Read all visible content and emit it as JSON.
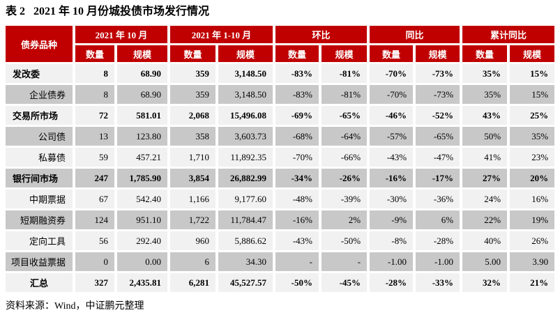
{
  "title": "表 2   2021 年 10 月份城投债市场发行情况",
  "source_note": "资料来源：Wind，中证鹏元整理",
  "colors": {
    "header_red": "#C00000",
    "row_light": "#F1F1F1",
    "row_dark": "#C8C8C8",
    "header_text": "#FFFFFF"
  },
  "table": {
    "corner_header": "债券品种",
    "group_headers": [
      "2021 年 10 月",
      "2021 年 1-10 月",
      "环比",
      "同比",
      "累计同比"
    ],
    "sub_headers": [
      "数量",
      "规模",
      "数量",
      "规模",
      "数量",
      "规模",
      "数量",
      "规模",
      "数量",
      "规模"
    ],
    "rows": [
      {
        "label": "发改委",
        "style": "parent",
        "values": [
          "8",
          "68.90",
          "359",
          "3,148.50",
          "-83%",
          "-81%",
          "-70%",
          "-73%",
          "35%",
          "15%"
        ]
      },
      {
        "label": "企业债券",
        "style": "child",
        "values": [
          "8",
          "68.90",
          "359",
          "3,148.50",
          "-83%",
          "-81%",
          "-70%",
          "-73%",
          "35%",
          "15%"
        ]
      },
      {
        "label": "交易所市场",
        "style": "parent",
        "values": [
          "72",
          "581.01",
          "2,068",
          "15,496.08",
          "-69%",
          "-65%",
          "-46%",
          "-52%",
          "43%",
          "25%"
        ]
      },
      {
        "label": "公司债",
        "style": "child",
        "values": [
          "13",
          "123.80",
          "358",
          "3,603.73",
          "-68%",
          "-64%",
          "-57%",
          "-65%",
          "50%",
          "35%"
        ]
      },
      {
        "label": "私募债",
        "style": "child",
        "values": [
          "59",
          "457.21",
          "1,710",
          "11,892.35",
          "-70%",
          "-66%",
          "-43%",
          "-47%",
          "41%",
          "23%"
        ]
      },
      {
        "label": "银行间市场",
        "style": "parent",
        "values": [
          "247",
          "1,785.90",
          "3,854",
          "26,882.99",
          "-34%",
          "-26%",
          "-16%",
          "-17%",
          "27%",
          "20%"
        ]
      },
      {
        "label": "中期票据",
        "style": "child",
        "values": [
          "67",
          "542.40",
          "1,166",
          "9,177.60",
          "-48%",
          "-39%",
          "-30%",
          "-36%",
          "24%",
          "16%"
        ]
      },
      {
        "label": "短期融资券",
        "style": "child",
        "values": [
          "124",
          "951.10",
          "1,722",
          "11,784.47",
          "-16%",
          "2%",
          "-9%",
          "6%",
          "22%",
          "19%"
        ]
      },
      {
        "label": "定向工具",
        "style": "child",
        "values": [
          "56",
          "292.40",
          "960",
          "5,886.62",
          "-43%",
          "-50%",
          "-8%",
          "-28%",
          "40%",
          "26%"
        ]
      },
      {
        "label": "项目收益票据",
        "style": "child",
        "values": [
          "0",
          "0.00",
          "6",
          "34.30",
          "-",
          "-",
          "-1.00",
          "-1.00",
          "5.00",
          "3.90"
        ]
      },
      {
        "label": "汇总",
        "style": "total",
        "values": [
          "327",
          "2,435.81",
          "6,281",
          "45,527.57",
          "-50%",
          "-45%",
          "-28%",
          "-33%",
          "32%",
          "21%"
        ]
      }
    ]
  }
}
